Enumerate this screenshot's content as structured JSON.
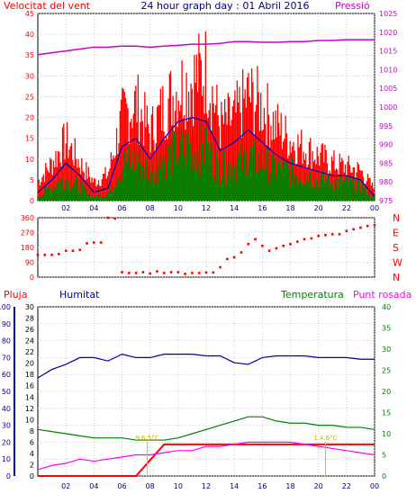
{
  "header": {
    "left_label": "Velocitat del vent",
    "title": "24 hour graph day : 01 Abril 2016",
    "right_label": "Pressió"
  },
  "colors": {
    "wind_gust": "#ff0000",
    "wind_avg_line": "#0000cc",
    "wind_avg_bars": "#008000",
    "pressure": "#cc00cc",
    "direction": "#ff0000",
    "rain": "#ff0000",
    "humidity": "#0000aa",
    "temperature": "#008000",
    "dewpoint": "#ff00ff",
    "grid": "#c0c0c0",
    "axis_text": "#000080"
  },
  "hour_ticks": [
    "02",
    "04",
    "06",
    "08",
    "10",
    "12",
    "14",
    "16",
    "18",
    "20",
    "22",
    "00"
  ],
  "chart_data": [
    {
      "type": "line",
      "id": "wind-pressure",
      "ylabel_left": "Velocitat del vent",
      "ylabel_right": "Pressió",
      "ylim_left": [
        0,
        45
      ],
      "yticks_left": [
        0,
        5,
        10,
        15,
        20,
        25,
        30,
        35,
        40,
        45
      ],
      "ylim_right": [
        975,
        1025
      ],
      "yticks_right": [
        975,
        980,
        985,
        990,
        995,
        1000,
        1005,
        1010,
        1015,
        1020,
        1025
      ],
      "x_hours": [
        0,
        1,
        2,
        3,
        4,
        5,
        6,
        7,
        8,
        9,
        10,
        11,
        12,
        13,
        14,
        15,
        16,
        17,
        18,
        19,
        20,
        21,
        22,
        23,
        24
      ],
      "series": [
        {
          "name": "wind_gust",
          "axis": "left",
          "values": [
            5,
            10,
            16,
            10,
            5,
            7,
            22,
            26,
            18,
            25,
            30,
            32,
            35,
            20,
            22,
            28,
            25,
            20,
            16,
            14,
            12,
            10,
            9,
            8,
            3
          ]
        },
        {
          "name": "wind_avg",
          "axis": "left",
          "values": [
            2,
            5,
            9,
            6,
            2,
            3,
            13,
            15,
            10,
            15,
            19,
            20,
            19,
            12,
            14,
            17,
            14,
            11,
            9,
            8,
            7,
            6,
            6,
            5,
            1
          ]
        },
        {
          "name": "wind_avg_bars",
          "axis": "left",
          "values": [
            1,
            4,
            6,
            4,
            1,
            2,
            10,
            12,
            8,
            12,
            14,
            15,
            14,
            9,
            10,
            12,
            11,
            9,
            8,
            7,
            6,
            5,
            5,
            4,
            1
          ]
        },
        {
          "name": "pressure",
          "axis": "right",
          "values": [
            1014,
            1014.5,
            1015,
            1015.5,
            1016,
            1016,
            1016.3,
            1016.3,
            1016,
            1016.3,
            1016.5,
            1016.8,
            1016.8,
            1017,
            1017.5,
            1017.5,
            1017.3,
            1017.3,
            1017.5,
            1017.5,
            1017.8,
            1017.8,
            1018,
            1018,
            1018
          ]
        }
      ]
    },
    {
      "type": "scatter",
      "id": "wind-direction",
      "ylim": [
        0,
        360
      ],
      "yticks": [
        0,
        90,
        180,
        270,
        360
      ],
      "ylabels_right": [
        "N",
        "W",
        "S",
        "E",
        "N"
      ],
      "x_hours": [
        0,
        0.5,
        1,
        1.5,
        2,
        2.5,
        3,
        3.5,
        4,
        4.5,
        5,
        5.5,
        6,
        6.5,
        7,
        7.5,
        8,
        8.5,
        9,
        9.5,
        10,
        10.5,
        11,
        11.5,
        12,
        12.5,
        13,
        13.5,
        14,
        14.5,
        15,
        15.5,
        16,
        16.5,
        17,
        17.5,
        18,
        18.5,
        19,
        19.5,
        20,
        20.5,
        21,
        21.5,
        22,
        22.5,
        23,
        23.5,
        24
      ],
      "values": [
        135,
        135,
        135,
        140,
        160,
        160,
        165,
        205,
        210,
        210,
        360,
        355,
        30,
        25,
        25,
        30,
        22,
        35,
        25,
        30,
        30,
        20,
        25,
        25,
        28,
        28,
        60,
        110,
        120,
        150,
        200,
        230,
        190,
        160,
        175,
        190,
        200,
        215,
        230,
        235,
        250,
        255,
        260,
        260,
        280,
        290,
        300,
        310,
        315
      ]
    },
    {
      "type": "line",
      "id": "rain-humidity-temp-dew",
      "legend": [
        "Pluja",
        "Humitat",
        "Temperatura",
        "Punt rosada"
      ],
      "ylim_humidity": [
        0,
        100
      ],
      "yticks_humidity": [
        0,
        10,
        20,
        30,
        40,
        50,
        60,
        70,
        80,
        90,
        100
      ],
      "ylim_mid": [
        0,
        30
      ],
      "yticks_mid": [
        0,
        2,
        4,
        6,
        8,
        10,
        12,
        14,
        16,
        18,
        20,
        22,
        24,
        26,
        28,
        30
      ],
      "ylim_temp": [
        0,
        40
      ],
      "yticks_temp": [
        0,
        5,
        10,
        15,
        20,
        25,
        30,
        35,
        40
      ],
      "x_hours": [
        0,
        1,
        2,
        3,
        4,
        5,
        6,
        7,
        8,
        9,
        10,
        11,
        12,
        13,
        14,
        15,
        16,
        17,
        18,
        19,
        20,
        21,
        22,
        23,
        24
      ],
      "series": [
        {
          "name": "Pluja",
          "axis": "mid",
          "values": [
            0,
            0,
            0,
            0,
            0,
            0,
            0,
            0,
            2.8,
            5.6,
            5.6,
            5.6,
            5.6,
            5.6,
            5.6,
            5.6,
            5.6,
            5.6,
            5.6,
            5.6,
            5.6,
            5.6,
            5.6,
            5.6,
            5.6
          ]
        },
        {
          "name": "Humitat",
          "axis": "humidity",
          "values": [
            58,
            63,
            66,
            70,
            70,
            68,
            72,
            70,
            70,
            72,
            72,
            72,
            71,
            71,
            67,
            66,
            70,
            71,
            71,
            71,
            70,
            70,
            70,
            69,
            69
          ]
        },
        {
          "name": "Temperatura",
          "axis": "temp",
          "values": [
            11,
            10.5,
            10,
            9.5,
            9,
            9,
            9,
            8.5,
            8.5,
            8.5,
            9,
            10,
            11,
            12,
            13,
            14,
            14,
            13,
            12.5,
            12.5,
            12,
            12,
            11.5,
            11.5,
            11
          ]
        },
        {
          "name": "Punt rosada",
          "axis": "temp",
          "values": [
            1.5,
            2.5,
            3,
            4,
            3.5,
            4,
            4.5,
            5,
            5,
            5.5,
            6,
            6,
            7,
            7,
            7.5,
            8,
            8,
            8,
            8,
            7.5,
            7,
            6.5,
            6,
            5.5,
            5
          ]
        }
      ],
      "annotations": [
        {
          "hour": 7.8,
          "label": "9.6.5°C"
        },
        {
          "hour": 20.5,
          "label": "1.4.6°C"
        }
      ]
    }
  ]
}
